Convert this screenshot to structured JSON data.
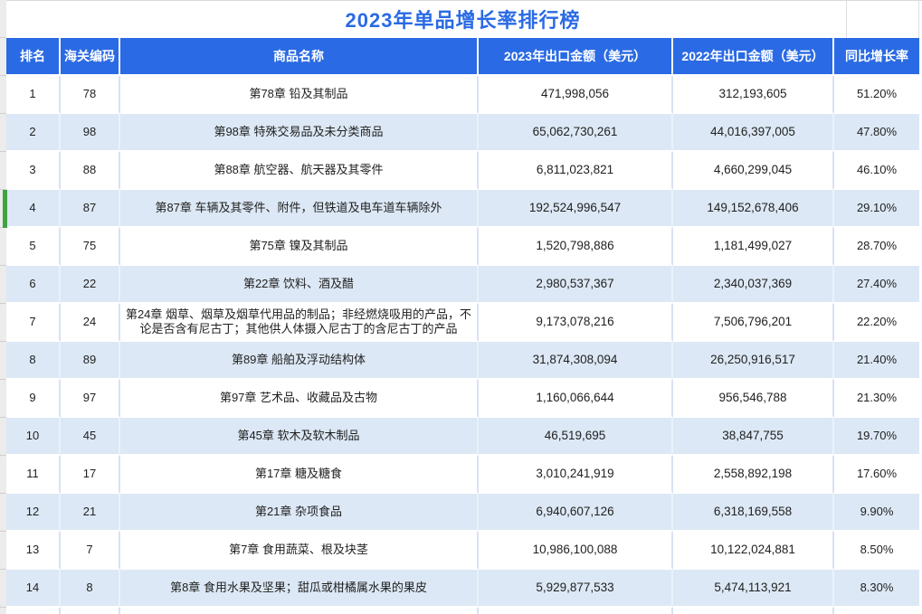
{
  "title": "2023年单品增长率排行榜",
  "colors": {
    "primary_blue": "#2A6AE4",
    "row_alt_blue": "#DCE8F5",
    "marker_green": "#3FA33F",
    "text": "#1F1F1F"
  },
  "selected_row_rank": "4",
  "table": {
    "columns": [
      "排名",
      "海关编码",
      "商品名称",
      "2023年出口金额（美元）",
      "2022年出口金额（美元）",
      "同比增长率"
    ],
    "rows": [
      {
        "rank": "1",
        "hs_code": "78",
        "product": "第78章 铅及其制品",
        "export_2023": "471,998,056",
        "export_2022": "312,193,605",
        "growth": "51.20%"
      },
      {
        "rank": "2",
        "hs_code": "98",
        "product": "第98章 特殊交易品及未分类商品",
        "export_2023": "65,062,730,261",
        "export_2022": "44,016,397,005",
        "growth": "47.80%"
      },
      {
        "rank": "3",
        "hs_code": "88",
        "product": "第88章 航空器、航天器及其零件",
        "export_2023": "6,811,023,821",
        "export_2022": "4,660,299,045",
        "growth": "46.10%"
      },
      {
        "rank": "4",
        "hs_code": "87",
        "product": "第87章 车辆及其零件、附件，但铁道及电车道车辆除外",
        "export_2023": "192,524,996,547",
        "export_2022": "149,152,678,406",
        "growth": "29.10%"
      },
      {
        "rank": "5",
        "hs_code": "75",
        "product": "第75章 镍及其制品",
        "export_2023": "1,520,798,886",
        "export_2022": "1,181,499,027",
        "growth": "28.70%"
      },
      {
        "rank": "6",
        "hs_code": "22",
        "product": "第22章 饮料、酒及醋",
        "export_2023": "2,980,537,367",
        "export_2022": "2,340,037,369",
        "growth": "27.40%"
      },
      {
        "rank": "7",
        "hs_code": "24",
        "product": "第24章 烟草、烟草及烟草代用品的制品；非经燃烧吸用的产品，不论是否含有尼古丁；其他供人体摄入尼古丁的含尼古丁的产品",
        "export_2023": "9,173,078,216",
        "export_2022": "7,506,796,201",
        "growth": "22.20%"
      },
      {
        "rank": "8",
        "hs_code": "89",
        "product": "第89章 船舶及浮动结构体",
        "export_2023": "31,874,308,094",
        "export_2022": "26,250,916,517",
        "growth": "21.40%"
      },
      {
        "rank": "9",
        "hs_code": "97",
        "product": "第97章 艺术品、收藏品及古物",
        "export_2023": "1,160,066,644",
        "export_2022": "956,546,788",
        "growth": "21.30%"
      },
      {
        "rank": "10",
        "hs_code": "45",
        "product": "第45章 软木及软木制品",
        "export_2023": "46,519,695",
        "export_2022": "38,847,755",
        "growth": "19.70%"
      },
      {
        "rank": "11",
        "hs_code": "17",
        "product": "第17章 糖及糖食",
        "export_2023": "3,010,241,919",
        "export_2022": "2,558,892,198",
        "growth": "17.60%"
      },
      {
        "rank": "12",
        "hs_code": "21",
        "product": "第21章 杂项食品",
        "export_2023": "6,940,607,126",
        "export_2022": "6,318,169,558",
        "growth": "9.90%"
      },
      {
        "rank": "13",
        "hs_code": "7",
        "product": "第7章  食用蔬菜、根及块茎",
        "export_2023": "10,986,100,088",
        "export_2022": "10,122,024,881",
        "growth": "8.50%"
      },
      {
        "rank": "14",
        "hs_code": "8",
        "product": "第8章  食用水果及坚果；甜瓜或柑橘属水果的果皮",
        "export_2023": "5,929,877,533",
        "export_2022": "5,474,113,921",
        "growth": "8.30%"
      }
    ]
  }
}
